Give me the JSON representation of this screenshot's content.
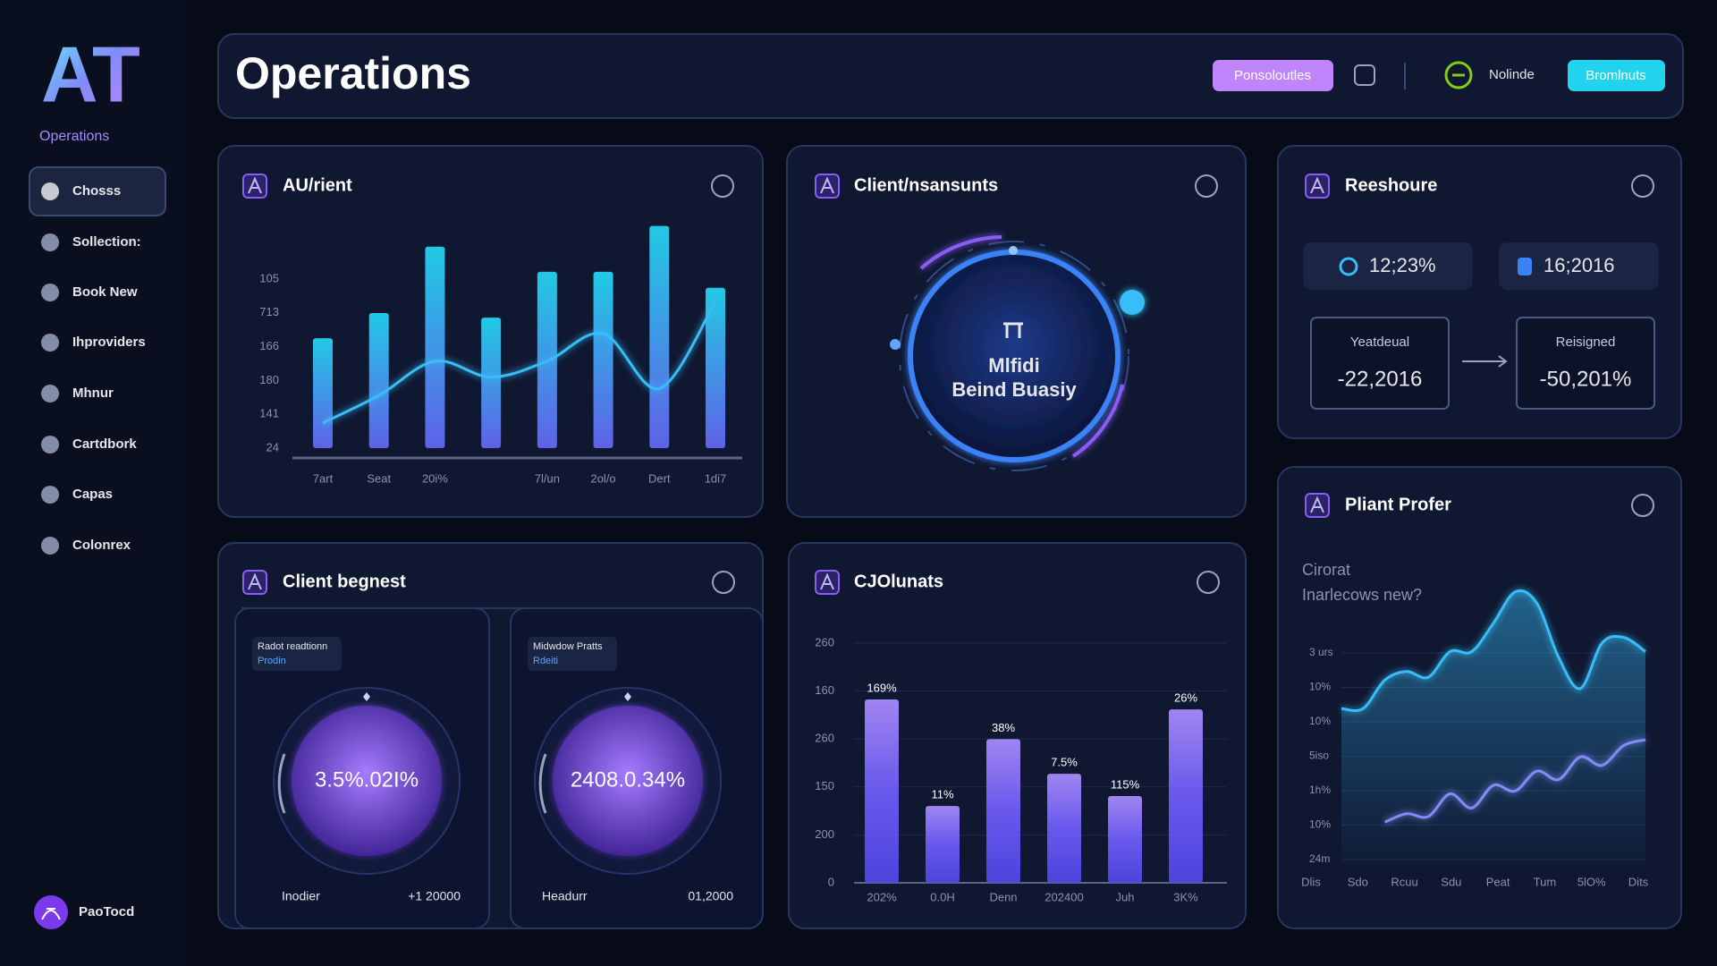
{
  "sidebar": {
    "logo": "AT",
    "subtitle": "Operations",
    "nav": [
      "Chosss",
      "Sollection:",
      "Book New",
      "Ihproviders",
      "Mhnur",
      "Cartdbork",
      "Capas",
      "Colonrex"
    ],
    "user": "PaoTocd"
  },
  "header": {
    "title": "Operations",
    "buttons": [
      "Ponsoloutles",
      "Bromlnuts"
    ],
    "user": "Nolinde"
  },
  "panels": {
    "activity": {
      "title": "AU/rient",
      "chart": {
        "type": "bar",
        "categories": [
          "7art",
          "Seat",
          "20i%",
          null,
          "7l/un",
          "2ol/o",
          "Dert",
          "1di7"
        ],
        "y_labels": [
          "105",
          "713",
          "166",
          "180",
          "141",
          "24"
        ],
        "ylim": [
          0,
          100
        ],
        "series": [
          {
            "type": "bar",
            "color": "#22d3ee",
            "values": [
              48,
              59,
              88,
              57,
              77,
              77,
              97,
              70
            ]
          },
          {
            "type": "line",
            "color": "#38bdf8",
            "values": [
              11,
              23,
              38,
              31,
              38,
              50,
              26,
              64
            ]
          }
        ]
      }
    },
    "clients": {
      "title": "Client/nsansunts",
      "center_lines": [
        "Mlfidi",
        "Beind Buasiy"
      ]
    },
    "resources": {
      "title": "Reeshoure",
      "stats": [
        "12;23%",
        "16;2016"
      ],
      "boxes": [
        {
          "label": "Yeatdeual",
          "value": "-22,2016"
        },
        {
          "label": "Reisigned",
          "value": "-50,201%"
        }
      ]
    },
    "requests": {
      "title": "Client begnest",
      "gauges": [
        {
          "tag": "Radot readtionn",
          "sub": "Prodin",
          "value": "3.5%.02I%",
          "footer_label": "Inodier",
          "footer_value": "+1 20000"
        },
        {
          "tag": "Midwdow Pratts",
          "sub": "Rdeiti",
          "value": "2408.0.34%",
          "footer_label": "Headurr",
          "footer_value": "01,2000"
        }
      ]
    },
    "accounts": {
      "title": "CJOlunats",
      "chart": {
        "type": "bar",
        "categories": [
          "202%",
          "0.0H",
          "Denn",
          "202400",
          "Juh",
          "3K%"
        ],
        "y_labels": [
          "260",
          "160",
          "260",
          "150",
          "200",
          "0"
        ],
        "ylim": [
          0,
          100
        ],
        "series": [
          {
            "type": "bar",
            "color": "#8b5cf6",
            "values": [
              74,
              31,
              58,
              44,
              35,
              70
            ]
          }
        ],
        "bar_labels": [
          "169%",
          "11%",
          "38%",
          "7.5%",
          "115%",
          "26%"
        ]
      }
    },
    "profile": {
      "title": "Pliant Profer",
      "subtitle_lines": [
        "Cirorat",
        "Inarlecows new?"
      ],
      "chart": {
        "type": "line",
        "x_labels": [
          "Dlis",
          "Sdo",
          "Rcuu",
          "Sdu",
          "Peat",
          "Tum",
          "5lO%",
          "Dits"
        ],
        "y_labels": [
          "3 urs",
          "10%",
          "10%",
          "5iso",
          "1h%",
          "10%",
          "24m"
        ],
        "ylim": [
          0,
          100
        ],
        "series": [
          {
            "type": "area",
            "color": "#38bdf8",
            "values": [
              55,
              55,
              65,
              68,
              66,
              75,
              75,
              85,
              96,
              92,
              73,
              62,
              78,
              80,
              75
            ]
          },
          {
            "type": "line",
            "color": "#818cf8",
            "values": [
              null,
              null,
              15,
              18,
              17,
              25,
              20,
              28,
              26,
              33,
              30,
              38,
              35,
              42,
              44
            ]
          }
        ]
      }
    }
  }
}
